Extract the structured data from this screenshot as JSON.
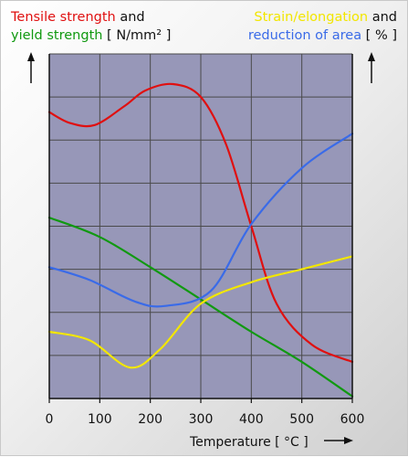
{
  "legend": {
    "left_line1": [
      {
        "text": "Tensile strength",
        "color": "#e01010"
      },
      {
        "text": " and",
        "color": "#111111"
      }
    ],
    "left_line2": [
      {
        "text": "yield strength",
        "color": "#119911"
      },
      {
        "text": " [ N/mm² ]",
        "color": "#111111"
      }
    ],
    "right_line1": [
      {
        "text": "Strain/elongation",
        "color": "#f2e600"
      },
      {
        "text": " and",
        "color": "#111111"
      }
    ],
    "right_line2": [
      {
        "text": "reduction of area",
        "color": "#3a6be8"
      },
      {
        "text": " [ % ]",
        "color": "#111111"
      }
    ]
  },
  "chart_data": {
    "type": "line",
    "title": "",
    "xlabel": "Temperature [ °C ]",
    "xlim": [
      0,
      600
    ],
    "x_ticks": [
      0,
      100,
      200,
      300,
      400,
      500,
      600
    ],
    "y_ticks_labeled": false,
    "grid": true,
    "plot_background": "#9797b8",
    "y_scale_note": "unitless relative scale 0-8 (one unit per gridline); left axis N/mm², right axis %",
    "ylim": [
      0,
      8
    ],
    "series": [
      {
        "name": "Tensile strength",
        "axis": "left",
        "color": "#e01010",
        "points": [
          [
            0,
            6.65
          ],
          [
            40,
            6.4
          ],
          [
            90,
            6.35
          ],
          [
            150,
            6.8
          ],
          [
            190,
            7.15
          ],
          [
            245,
            7.3
          ],
          [
            300,
            7.0
          ],
          [
            350,
            5.9
          ],
          [
            400,
            4.0
          ],
          [
            450,
            2.2
          ],
          [
            520,
            1.25
          ],
          [
            600,
            0.85
          ]
        ]
      },
      {
        "name": "yield strength",
        "axis": "left",
        "color": "#119911",
        "points": [
          [
            0,
            4.2
          ],
          [
            100,
            3.75
          ],
          [
            200,
            3.05
          ],
          [
            300,
            2.3
          ],
          [
            400,
            1.55
          ],
          [
            500,
            0.85
          ],
          [
            600,
            0.05
          ]
        ]
      },
      {
        "name": "Strain/elongation",
        "axis": "right",
        "color": "#f2e600",
        "points": [
          [
            0,
            1.55
          ],
          [
            80,
            1.35
          ],
          [
            160,
            0.72
          ],
          [
            220,
            1.15
          ],
          [
            300,
            2.2
          ],
          [
            400,
            2.7
          ],
          [
            500,
            3.0
          ],
          [
            600,
            3.3
          ]
        ]
      },
      {
        "name": "reduction of area",
        "axis": "right",
        "color": "#3a6be8",
        "points": [
          [
            0,
            3.05
          ],
          [
            80,
            2.75
          ],
          [
            170,
            2.25
          ],
          [
            230,
            2.15
          ],
          [
            320,
            2.5
          ],
          [
            400,
            4.05
          ],
          [
            500,
            5.35
          ],
          [
            600,
            6.15
          ]
        ]
      }
    ]
  }
}
